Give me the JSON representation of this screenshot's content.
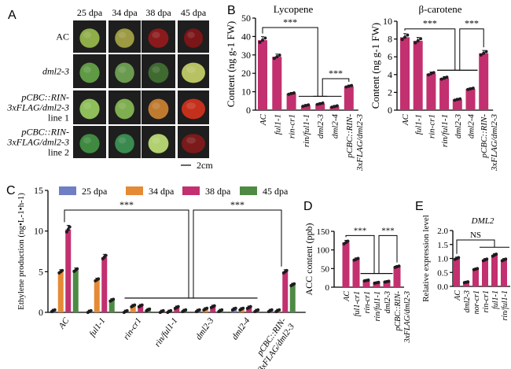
{
  "panel_letters": [
    "A",
    "B",
    "C",
    "D",
    "E"
  ],
  "panel_a": {
    "columns": [
      "25 dpa",
      "34 dpa",
      "38 dpa",
      "45 dpa"
    ],
    "rows": [
      {
        "label": [
          "AC"
        ],
        "italic": false,
        "fruit_colors": [
          "#8fae4a",
          "#9c9a42",
          "#8a1a1c",
          "#7a1518"
        ]
      },
      {
        "label": [
          "dml2-3"
        ],
        "italic": true,
        "fruit_colors": [
          "#5f9a45",
          "#6a9a50",
          "#3f6a30",
          "#b8c262"
        ]
      },
      {
        "label": [
          "pCBC::RIN-",
          "3xFLAG/dml2-3",
          "line 1"
        ],
        "italic": true,
        "fruit_colors": [
          "#8fbf5a",
          "#7fae50",
          "#c07a30",
          "#c5301c"
        ]
      },
      {
        "label": [
          "pCBC::RIN-",
          "3xFLAG/dml2-3",
          "line 2"
        ],
        "italic": true,
        "fruit_colors": [
          "#3f8a40",
          "#3a8a50",
          "#b2d070",
          "#7a1a1a"
        ]
      }
    ],
    "scale_bar": "2cm"
  },
  "chart_data": [
    {
      "id": "B-lycopene",
      "type": "bar",
      "title": "Lycopene",
      "ylabel": "Content (ng g-1 FW)",
      "ylim": [
        0,
        50
      ],
      "yticks": [
        0,
        10,
        20,
        30,
        40,
        50
      ],
      "categories": [
        "AC",
        "ful1-1",
        "rin-cr1",
        "rin/ful1-1",
        "dml2-3",
        "dml2-4",
        "pCBC::RIN-3xFLAG/dml2-3"
      ],
      "values": [
        38,
        29,
        9,
        2.5,
        3.5,
        2,
        13
      ],
      "color": "#c2306f",
      "annotations": [
        {
          "label": "***",
          "from": 0,
          "group": [
            3,
            5
          ]
        },
        {
          "label": "***",
          "from": 6,
          "group": [
            4,
            4
          ]
        }
      ]
    },
    {
      "id": "B-beta-carotene",
      "type": "bar",
      "title": "β-carotene",
      "ylabel": "Content (ng g-1 FW)",
      "ylim": [
        0,
        10
      ],
      "yticks": [
        0,
        2,
        4,
        6,
        8,
        10
      ],
      "categories": [
        "AC",
        "ful1-1",
        "rin-cr1",
        "rin/ful1-1",
        "dml2-3",
        "dml2-4",
        "pCBC::RIN-3xFLAG/dml2-3"
      ],
      "values": [
        8.2,
        7.8,
        4.1,
        3.6,
        1.2,
        2.4,
        6.4
      ],
      "color": "#c2306f",
      "annotations": [
        {
          "label": "***",
          "from": 0,
          "group": [
            3,
            5
          ]
        },
        {
          "label": "***",
          "from": 6,
          "group": [
            3,
            5
          ]
        }
      ]
    },
    {
      "id": "C-ethylene",
      "type": "grouped-bar",
      "ylabel": "Ethylene production (ng•L-1•h-1)",
      "ylim": [
        0,
        15
      ],
      "yticks": [
        0,
        5,
        10,
        15
      ],
      "legend_position": "top",
      "categories": [
        "AC",
        "ful1-1",
        "rin-cr1",
        "rin/ful1-1",
        "dml2-3",
        "dml2-4",
        "pCBC::RIN-3xFLAG/dml2-3"
      ],
      "series": [
        {
          "name": "25 dpa",
          "color": "#6f7fc4",
          "values": [
            0.2,
            0.1,
            0.1,
            0.1,
            0.2,
            0.4,
            0.2
          ]
        },
        {
          "name": "34 dpa",
          "color": "#e58a35",
          "values": [
            5.0,
            4.0,
            0.8,
            0.1,
            0.4,
            0.4,
            0.2
          ]
        },
        {
          "name": "38 dpa",
          "color": "#c2306f",
          "values": [
            10.2,
            6.8,
            0.8,
            0.6,
            0.7,
            0.6,
            5.0
          ]
        },
        {
          "name": "45 dpa",
          "color": "#4f8a45",
          "values": [
            5.2,
            1.5,
            0.3,
            0.2,
            0.2,
            0.2,
            3.4
          ]
        }
      ],
      "annotations": [
        {
          "label": "***",
          "from": 0,
          "group": [
            2,
            5
          ]
        },
        {
          "label": "***",
          "from": 6,
          "group": [
            2,
            5
          ]
        }
      ]
    },
    {
      "id": "D-acc",
      "type": "bar",
      "ylabel": "ACC content (ppb)",
      "ylim": [
        0,
        150
      ],
      "yticks": [
        0,
        50,
        100,
        150
      ],
      "categories": [
        "AC",
        "ful1-cr1",
        "rin-cr1",
        "rin/ful1-1",
        "dml2-3",
        "pCBC::RIN-3xFLAG/dml2-3"
      ],
      "values": [
        120,
        75,
        18,
        12,
        15,
        55
      ],
      "color": "#c2306f",
      "annotations": [
        {
          "label": "***",
          "from": 0,
          "group": [
            2,
            4
          ]
        },
        {
          "label": "***",
          "from": 5,
          "group": [
            2,
            4
          ]
        }
      ]
    },
    {
      "id": "E-dml2",
      "type": "bar",
      "title": "DML2",
      "ylabel": "Relative expression level",
      "ylim": [
        0,
        2.0
      ],
      "yticks": [
        "0.0",
        "0.5",
        "1.0",
        "1.5",
        "2.0"
      ],
      "categories": [
        "AC",
        "dml2-3",
        "nor-cr1",
        "rin-cr1",
        "ful1-1",
        "rin/ful1-1"
      ],
      "values": [
        1.0,
        0.15,
        0.62,
        0.95,
        1.12,
        0.95
      ],
      "color": "#c2306f",
      "annotations": [
        {
          "label": "NS",
          "from": 0,
          "group": [
            3,
            5
          ]
        }
      ]
    }
  ]
}
